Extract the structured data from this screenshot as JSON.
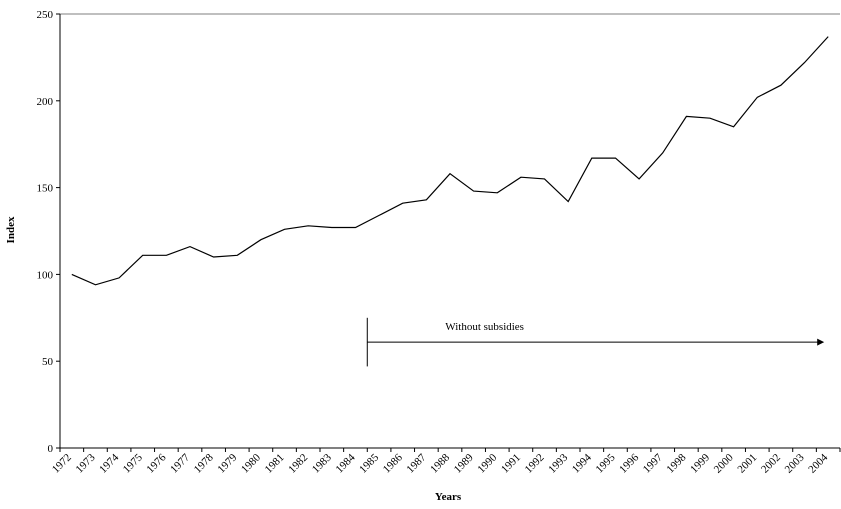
{
  "chart_data": {
    "type": "line",
    "title": "",
    "xlabel": "Years",
    "ylabel": "Index",
    "x": [
      "1972",
      "1973",
      "1974",
      "1975",
      "1976",
      "1977",
      "1978",
      "1979",
      "1980",
      "1981",
      "1982",
      "1983",
      "1984",
      "1985",
      "1986",
      "1987",
      "1988",
      "1989",
      "1990",
      "1991",
      "1992",
      "1993",
      "1994",
      "1995",
      "1996",
      "1997",
      "1998",
      "1999",
      "2000",
      "2001",
      "2002",
      "2003",
      "2004"
    ],
    "series": [
      {
        "values": [
          100,
          94,
          98,
          111,
          111,
          116,
          110,
          111,
          120,
          126,
          128,
          127,
          127,
          134,
          141,
          143,
          158,
          148,
          147,
          156,
          155,
          142,
          167,
          167,
          155,
          170,
          191,
          190,
          185,
          202,
          209,
          222,
          237
        ]
      }
    ],
    "ylim": [
      0,
      250
    ],
    "yticks": [
      0,
      50,
      100,
      150,
      200,
      250
    ],
    "grid": false,
    "legend": "none",
    "line_color": "#000000",
    "annotations": [
      {
        "text": "Without subsidies",
        "type": "arrow",
        "start_x": "1985",
        "end_x": "2004"
      }
    ]
  }
}
